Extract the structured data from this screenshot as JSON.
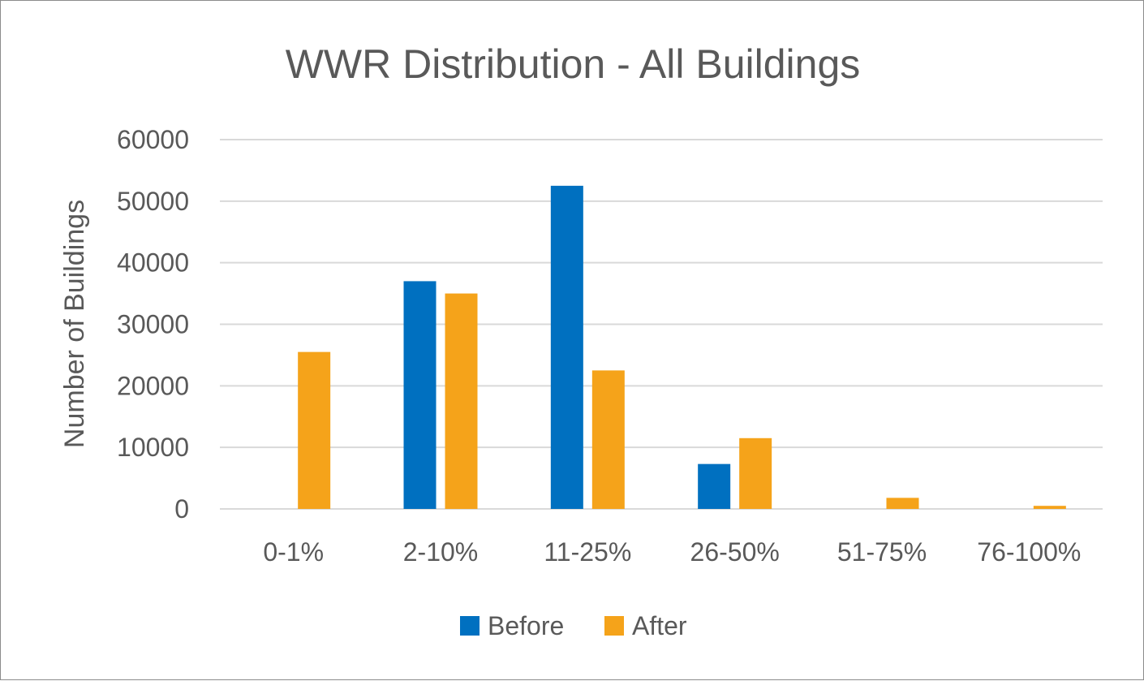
{
  "chart_data": {
    "type": "bar",
    "title": "WWR Distribution - All Buildings",
    "xlabel": "",
    "ylabel": "Number of Buildings",
    "categories": [
      "0-1%",
      "2-10%",
      "11-25%",
      "26-50%",
      "51-75%",
      "76-100%"
    ],
    "series": [
      {
        "name": "Before",
        "color": "#0070C0",
        "values": [
          0,
          37000,
          52500,
          7300,
          0,
          0
        ]
      },
      {
        "name": "After",
        "color": "#F5A31A",
        "values": [
          25500,
          35000,
          22500,
          11500,
          1800,
          500
        ]
      }
    ],
    "ylim": [
      0,
      60000
    ],
    "yticks": [
      "0",
      "10000",
      "20000",
      "30000",
      "40000",
      "50000",
      "60000"
    ],
    "grid": true,
    "gridColor": "#d9d9d9",
    "legend": "bottom"
  }
}
